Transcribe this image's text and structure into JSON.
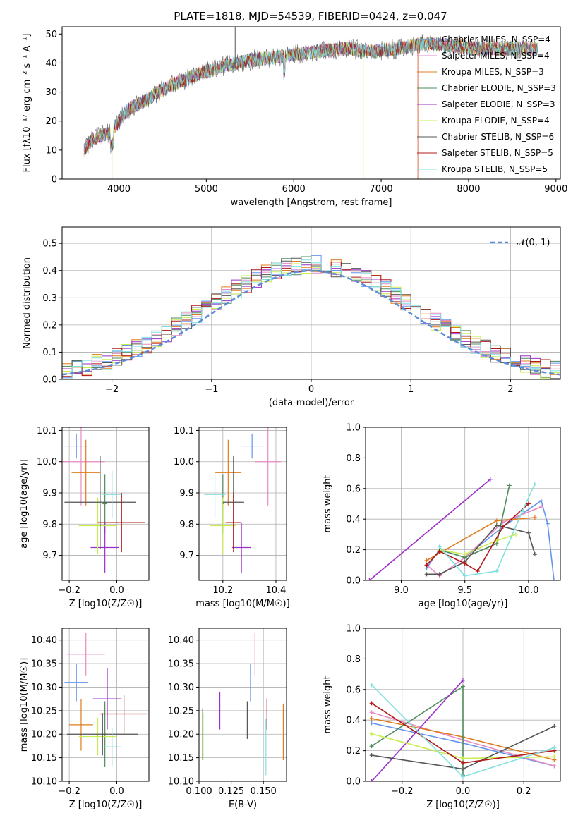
{
  "title": "PLATE=1818, MJD=54539, FIBERID=0424, z=0.047",
  "series": [
    {
      "name": "Chabrier MILES, N_SSP=4",
      "color": "#6495ed"
    },
    {
      "name": "Salpeter MILES, N_SSP=4",
      "color": "#e78ac3"
    },
    {
      "name": "Kroupa MILES, N_SSP=3",
      "color": "#e07b1c"
    },
    {
      "name": "Chabrier ELODIE, N_SSP=3",
      "color": "#4f8a5c"
    },
    {
      "name": "Salpeter ELODIE, N_SSP=3",
      "color": "#9b30c8"
    },
    {
      "name": "Kroupa ELODIE, N_SSP=4",
      "color": "#c8ee50"
    },
    {
      "name": "Chabrier STELIB, N_SSP=6",
      "color": "#555555"
    },
    {
      "name": "Salpeter STELIB, N_SSP=5",
      "color": "#b01818"
    },
    {
      "name": "Kroupa STELIB, N_SSP=5",
      "color": "#7fdfe0"
    }
  ],
  "chart_data": [
    {
      "id": "spectrum",
      "type": "line",
      "xlabel": "wavelength [Angstrom, rest frame]",
      "ylabel": "Flux [fλ10⁻¹⁷ erg cm⁻² s⁻¹ A⁻¹]",
      "xlim": [
        3350,
        9050
      ],
      "ylim": [
        0,
        52.5
      ],
      "xticks": [
        4000,
        5000,
        6000,
        7000,
        8000,
        9000
      ],
      "yticks": [
        0,
        10,
        20,
        30,
        40,
        50
      ],
      "grid": false,
      "legend": "right",
      "continuum": [
        [
          3600,
          10
        ],
        [
          3700,
          14
        ],
        [
          3900,
          16
        ],
        [
          4100,
          24
        ],
        [
          4300,
          27
        ],
        [
          4500,
          31
        ],
        [
          4800,
          35
        ],
        [
          5000,
          37
        ],
        [
          5200,
          39
        ],
        [
          5500,
          41
        ],
        [
          5800,
          42
        ],
        [
          6000,
          43
        ],
        [
          6300,
          44
        ],
        [
          6600,
          45
        ],
        [
          6900,
          44
        ],
        [
          7200,
          45
        ],
        [
          7500,
          47
        ],
        [
          7800,
          46
        ],
        [
          8100,
          45
        ],
        [
          8400,
          45
        ],
        [
          8800,
          45
        ]
      ]
    },
    {
      "id": "residuals",
      "type": "histogram",
      "xlabel": "(data-model)/error",
      "ylabel": "Normed distribution",
      "xlim": [
        -2.5,
        2.5
      ],
      "ylim": [
        0,
        0.56
      ],
      "xticks": [
        -2,
        -1,
        0,
        1,
        2
      ],
      "yticks": [
        0.0,
        0.1,
        0.2,
        0.3,
        0.4,
        0.5
      ],
      "grid": true,
      "reference": "N(0,1)",
      "reference_label": "𝒩(0, 1)"
    },
    {
      "id": "age_vs_Z",
      "type": "errorbar",
      "xlabel": "Z [log10(Z/Z☉)]",
      "ylabel": "age  [log10(age/yr)]",
      "xlim": [
        -0.23,
        0.135
      ],
      "ylim": [
        9.62,
        10.11
      ],
      "xticks": [
        -0.2,
        0.0
      ],
      "yticks": [
        9.7,
        9.8,
        9.9,
        10.0,
        10.1
      ],
      "grid": true,
      "points": [
        {
          "x": -0.17,
          "y": 10.05,
          "xerr": 0.05,
          "yerr": 0.04
        },
        {
          "x": -0.15,
          "y": 10.0,
          "xerr": 0.1,
          "yerr": 0.14
        },
        {
          "x": -0.13,
          "y": 9.965,
          "xerr": 0.06,
          "yerr": 0.105
        },
        {
          "x": -0.05,
          "y": 9.865,
          "xerr": 0.01,
          "yerr": 0.095
        },
        {
          "x": -0.05,
          "y": 9.725,
          "xerr": 0.06,
          "yerr": 0.08
        },
        {
          "x": -0.08,
          "y": 9.795,
          "xerr": 0.08,
          "yerr": 0.09
        },
        {
          "x": -0.07,
          "y": 9.87,
          "xerr": 0.15,
          "yerr": 0.15
        },
        {
          "x": 0.02,
          "y": 9.805,
          "xerr": 0.1,
          "yerr": 0.095
        },
        {
          "x": -0.02,
          "y": 9.895,
          "xerr": 0.04,
          "yerr": 0.075
        }
      ]
    },
    {
      "id": "age_vs_mass",
      "type": "errorbar",
      "xlabel": "mass [log10(M/M☉)]",
      "ylabel": "",
      "xlim": [
        10.11,
        10.44
      ],
      "ylim": [
        9.62,
        10.11
      ],
      "xticks": [
        10.2,
        10.4
      ],
      "yticks": [
        9.7,
        9.8,
        9.9,
        10.0,
        10.1
      ],
      "grid": true,
      "points": [
        {
          "x": 10.31,
          "y": 10.05,
          "xerr": 0.04,
          "yerr": 0.04
        },
        {
          "x": 10.37,
          "y": 10.0,
          "xerr": 0.05,
          "yerr": 0.14
        },
        {
          "x": 10.22,
          "y": 9.965,
          "xerr": 0.05,
          "yerr": 0.105
        },
        {
          "x": 10.2,
          "y": 9.865,
          "xerr": 0.005,
          "yerr": 0.095
        },
        {
          "x": 10.27,
          "y": 9.725,
          "xerr": 0.035,
          "yerr": 0.08
        },
        {
          "x": 10.2,
          "y": 9.795,
          "xerr": 0.05,
          "yerr": 0.09
        },
        {
          "x": 10.24,
          "y": 9.87,
          "xerr": 0.04,
          "yerr": 0.15
        },
        {
          "x": 10.24,
          "y": 9.805,
          "xerr": 0.03,
          "yerr": 0.095
        },
        {
          "x": 10.17,
          "y": 9.895,
          "xerr": 0.04,
          "yerr": 0.075
        }
      ]
    },
    {
      "id": "weight_vs_age",
      "type": "line",
      "xlabel": "age  [log10(age/yr)]",
      "ylabel": "mass weight",
      "xlim": [
        8.72,
        10.25
      ],
      "ylim": [
        0,
        1.0
      ],
      "xticks": [
        9.0,
        9.5,
        10.0
      ],
      "yticks": [
        0.0,
        0.2,
        0.4,
        0.6,
        0.8,
        1.0
      ],
      "grid": true,
      "lines": [
        [
          [
            9.2,
            0.08
          ],
          [
            9.3,
            0.2
          ],
          [
            9.5,
            0.15
          ],
          [
            9.8,
            0.35
          ],
          [
            10.1,
            0.52
          ],
          [
            10.15,
            0.37
          ],
          [
            10.2,
            0.0
          ]
        ],
        [
          [
            9.2,
            0.1
          ],
          [
            9.3,
            0.03
          ],
          [
            9.5,
            0.15
          ],
          [
            9.8,
            0.38
          ],
          [
            10.1,
            0.48
          ]
        ],
        [
          [
            9.2,
            0.13
          ],
          [
            9.75,
            0.39
          ],
          [
            10.05,
            0.41
          ]
        ],
        [
          [
            9.3,
            0.2
          ],
          [
            9.5,
            0.15
          ],
          [
            9.75,
            0.24
          ],
          [
            9.85,
            0.62
          ]
        ],
        [
          [
            8.75,
            0.0
          ],
          [
            9.7,
            0.66
          ]
        ],
        [
          [
            9.3,
            0.2
          ],
          [
            9.5,
            0.17
          ],
          [
            9.75,
            0.26
          ],
          [
            9.9,
            0.3
          ]
        ],
        [
          [
            9.2,
            0.04
          ],
          [
            9.3,
            0.04
          ],
          [
            9.5,
            0.12
          ],
          [
            9.75,
            0.36
          ],
          [
            10.0,
            0.31
          ],
          [
            10.05,
            0.17
          ]
        ],
        [
          [
            9.2,
            0.1
          ],
          [
            9.3,
            0.19
          ],
          [
            9.5,
            0.11
          ],
          [
            9.6,
            0.06
          ],
          [
            9.8,
            0.35
          ],
          [
            10.0,
            0.5
          ]
        ],
        [
          [
            9.3,
            0.22
          ],
          [
            9.5,
            0.03
          ],
          [
            9.75,
            0.06
          ],
          [
            9.95,
            0.45
          ],
          [
            10.05,
            0.63
          ]
        ]
      ]
    },
    {
      "id": "mass_vs_Z",
      "type": "errorbar",
      "xlabel": "Z [log10(Z/Z☉)]",
      "ylabel": "mass [log10(M/M☉)]",
      "xlim": [
        -0.23,
        0.135
      ],
      "ylim": [
        10.1,
        10.425
      ],
      "xticks": [
        -0.2,
        0.0
      ],
      "yticks": [
        10.1,
        10.15,
        10.2,
        10.25,
        10.3,
        10.35,
        10.4
      ],
      "grid": true,
      "points": [
        {
          "x": -0.17,
          "y": 10.31,
          "xerr": 0.05,
          "yerr": 0.04
        },
        {
          "x": -0.13,
          "y": 10.37,
          "xerr": 0.08,
          "yerr": 0.045
        },
        {
          "x": -0.15,
          "y": 10.22,
          "xerr": 0.05,
          "yerr": 0.055
        },
        {
          "x": -0.05,
          "y": 10.2,
          "xerr": 0.01,
          "yerr": 0.07
        },
        {
          "x": -0.04,
          "y": 10.275,
          "xerr": 0.06,
          "yerr": 0.065
        },
        {
          "x": -0.08,
          "y": 10.195,
          "xerr": 0.08,
          "yerr": 0.04
        },
        {
          "x": -0.06,
          "y": 10.2,
          "xerr": 0.15,
          "yerr": 0.045
        },
        {
          "x": 0.03,
          "y": 10.243,
          "xerr": 0.1,
          "yerr": 0.04
        },
        {
          "x": -0.02,
          "y": 10.173,
          "xerr": 0.04,
          "yerr": 0.04
        }
      ]
    },
    {
      "id": "mass_vs_ebv",
      "type": "errorbar",
      "xlabel": "E(B-V)",
      "ylabel": "",
      "xlim": [
        0.1,
        0.168
      ],
      "ylim": [
        10.1,
        10.425
      ],
      "xticks": [
        0.1,
        0.125,
        0.15
      ],
      "yticks": [
        10.1,
        10.15,
        10.2,
        10.25,
        10.3,
        10.35,
        10.4
      ],
      "grid": true,
      "points": [
        {
          "x": 0.14,
          "y": 10.31,
          "xerr": 0,
          "yerr": 0.04
        },
        {
          "x": 0.1435,
          "y": 10.37,
          "xerr": 0,
          "yerr": 0.045
        },
        {
          "x": 0.1655,
          "y": 10.205,
          "xerr": 0,
          "yerr": 0.06
        },
        {
          "x": 0.1028,
          "y": 10.2,
          "xerr": 0,
          "yerr": 0.055
        },
        {
          "x": 0.1162,
          "y": 10.25,
          "xerr": 0,
          "yerr": 0.04
        },
        {
          "x": 0.1032,
          "y": 10.195,
          "xerr": 0,
          "yerr": 0.05
        },
        {
          "x": 0.1375,
          "y": 10.23,
          "xerr": 0,
          "yerr": 0.04
        },
        {
          "x": 0.1528,
          "y": 10.243,
          "xerr": 0,
          "yerr": 0.033
        },
        {
          "x": 0.152,
          "y": 10.173,
          "xerr": 0,
          "yerr": 0.06
        }
      ]
    },
    {
      "id": "weight_vs_Z",
      "type": "line",
      "xlabel": "Z [log10(Z/Z☉)]",
      "ylabel": "mass weight",
      "xlim": [
        -0.32,
        0.32
      ],
      "ylim": [
        0,
        1.0
      ],
      "xticks": [
        -0.2,
        0.0,
        0.2
      ],
      "yticks": [
        0.0,
        0.2,
        0.4,
        0.6,
        0.8,
        1.0
      ],
      "grid": true,
      "lines": [
        [
          [
            -0.3,
            0.38
          ],
          [
            0.0,
            0.25
          ],
          [
            0.3,
            0.1
          ]
        ],
        [
          [
            -0.3,
            0.45
          ],
          [
            0.0,
            0.27
          ],
          [
            0.3,
            0.1
          ]
        ],
        [
          [
            -0.3,
            0.41
          ],
          [
            0.0,
            0.29
          ],
          [
            0.3,
            0.14
          ]
        ],
        [
          [
            -0.3,
            0.23
          ],
          [
            0.0,
            0.62
          ],
          [
            0.0,
            0.04
          ]
        ],
        [
          [
            -0.3,
            0.0
          ],
          [
            0.0,
            0.66
          ]
        ],
        [
          [
            -0.3,
            0.31
          ],
          [
            0.0,
            0.15
          ],
          [
            0.3,
            0.16
          ]
        ],
        [
          [
            -0.3,
            0.17
          ],
          [
            0.0,
            0.08
          ],
          [
            0.3,
            0.36
          ]
        ],
        [
          [
            -0.3,
            0.51
          ],
          [
            0.0,
            0.12
          ],
          [
            0.3,
            0.2
          ]
        ],
        [
          [
            -0.3,
            0.63
          ],
          [
            0.0,
            0.03
          ],
          [
            0.3,
            0.22
          ]
        ]
      ]
    }
  ]
}
